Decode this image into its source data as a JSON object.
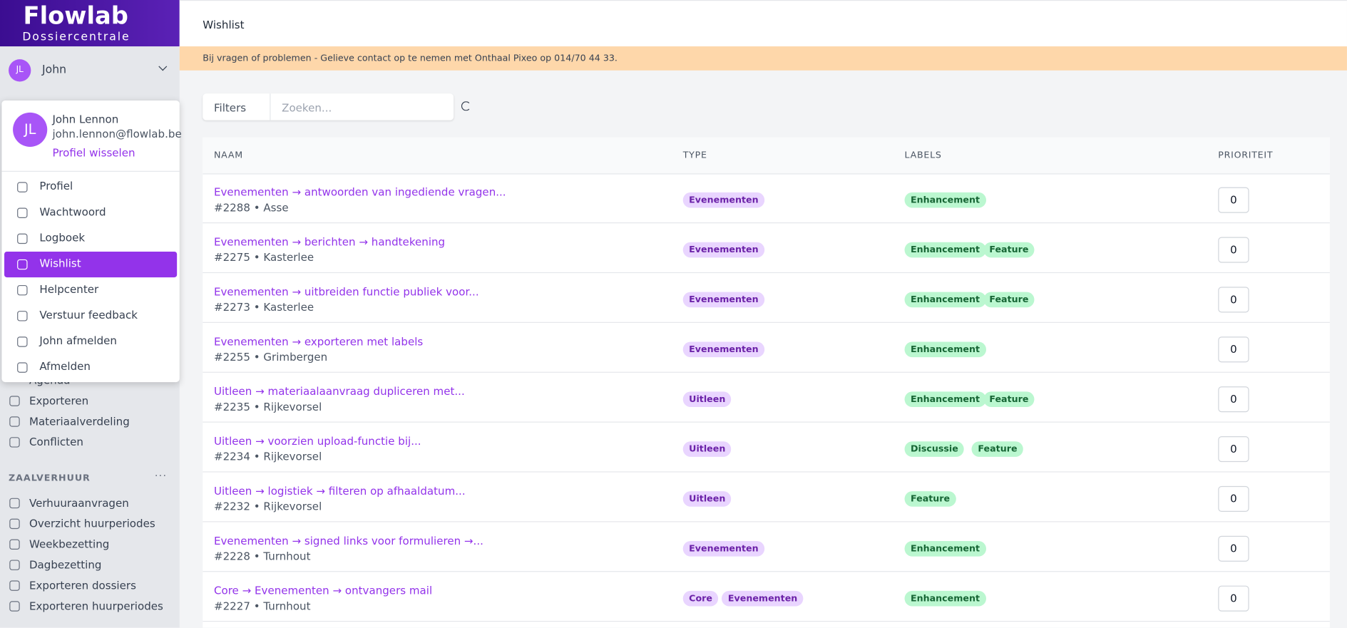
{
  "brand": {
    "name": "Flowlab",
    "subtitle": "Dossiercentrale"
  },
  "user": {
    "initials": "JL",
    "short_name": "John",
    "full_name": "John Lennon",
    "email": "john.lennon@flowlab.be",
    "switch_profile": "Profiel wisselen"
  },
  "user_menu": {
    "items": [
      "Profiel",
      "Wachtwoord",
      "Logboek",
      "Wishlist",
      "Helpcenter",
      "Verstuur feedback",
      "John afmelden",
      "Afmelden"
    ],
    "active": "Wishlist"
  },
  "sidebar": {
    "items_top": [
      "Agenda",
      "Exporteren",
      "Materiaalverdeling",
      "Conflicten"
    ],
    "section": "ZAALVERHUUR",
    "section_items": [
      "Verhuuraanvragen",
      "Overzicht huurperiodes",
      "Weekbezetting",
      "Dagbezetting",
      "Exporteren dossiers",
      "Exporteren huurperiodes"
    ]
  },
  "header": {
    "title": "Wishlist"
  },
  "banner": {
    "text": "Bij vragen of problemen - Gelieve contact op te nemen met Onthaal Pixeo op 014/70 44 33."
  },
  "toolbar": {
    "filters": "Filters",
    "search_placeholder": "Zoeken..."
  },
  "table": {
    "columns": [
      "NAAM",
      "TYPE",
      "LABELS",
      "PRIORITEIT"
    ],
    "rows": [
      {
        "title": "Evenementen → antwoorden van ingediende vragen...",
        "meta": "#2288 • Asse",
        "types": [
          "Evenementen"
        ],
        "labels": [
          "Enhancement"
        ],
        "priority": "0"
      },
      {
        "title": "Evenementen → berichten → handtekening",
        "meta": "#2275 • Kasterlee",
        "types": [
          "Evenementen"
        ],
        "labels": [
          "Enhancement",
          "Feature"
        ],
        "priority": "0"
      },
      {
        "title": "Evenementen → uitbreiden functie publiek voor...",
        "meta": "#2273 • Kasterlee",
        "types": [
          "Evenementen"
        ],
        "labels": [
          "Enhancement",
          "Feature"
        ],
        "priority": "0"
      },
      {
        "title": "Evenementen → exporteren met labels",
        "meta": "#2255 • Grimbergen",
        "types": [
          "Evenementen"
        ],
        "labels": [
          "Enhancement"
        ],
        "priority": "0"
      },
      {
        "title": "Uitleen → materiaalaanvraag dupliceren met...",
        "meta": "#2235 • Rijkevorsel",
        "types": [
          "Uitleen"
        ],
        "labels": [
          "Enhancement",
          "Feature"
        ],
        "priority": "0"
      },
      {
        "title": "Uitleen → voorzien upload-functie bij...",
        "meta": "#2234 • Rijkevorsel",
        "types": [
          "Uitleen"
        ],
        "labels": [
          "Discussie",
          "Feature"
        ],
        "priority": "0"
      },
      {
        "title": "Uitleen → logistiek → filteren op afhaaldatum...",
        "meta": "#2232 • Rijkevorsel",
        "types": [
          "Uitleen"
        ],
        "labels": [
          "Feature"
        ],
        "priority": "0"
      },
      {
        "title": "Evenementen → signed links voor formulieren →...",
        "meta": "#2228 • Turnhout",
        "types": [
          "Evenementen"
        ],
        "labels": [
          "Enhancement"
        ],
        "priority": "0"
      },
      {
        "title": "Core → Evenementen → ontvangers mail",
        "meta": "#2227 • Turnhout",
        "types": [
          "Core",
          "Evenementen"
        ],
        "labels": [
          "Enhancement"
        ],
        "priority": "0"
      }
    ]
  }
}
